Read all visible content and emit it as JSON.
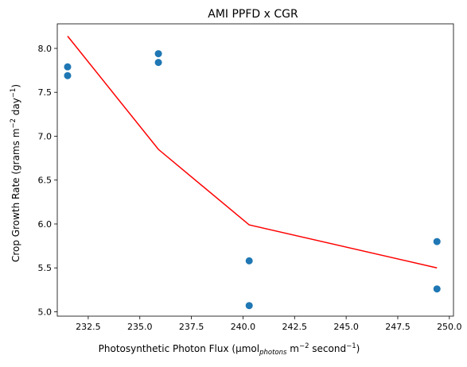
{
  "chart_data": {
    "type": "scatter",
    "title": "AMI PPFD x CGR",
    "xlabel": {
      "prefix": "Photosynthetic Photon Flux (μmol",
      "sub": "photons",
      "mid": " m",
      "sup1": "−2",
      "mid2": " second",
      "sup2": "−1",
      "suffix": ")"
    },
    "ylabel": {
      "prefix": "Crop Growth Rate (grams m",
      "sup1": "−2",
      "mid": " day",
      "sup2": "−1",
      "suffix": ")"
    },
    "xlim": [
      231.0,
      250.2
    ],
    "ylim": [
      4.95,
      8.28
    ],
    "xticks": [
      "232.5",
      "235.0",
      "237.5",
      "240.0",
      "242.5",
      "245.0",
      "247.5",
      "250.0"
    ],
    "yticks": [
      "5.0",
      "5.5",
      "6.0",
      "6.5",
      "7.0",
      "7.5",
      "8.0"
    ],
    "series": [
      {
        "kind": "scatter",
        "color": "#1f77b4",
        "points": [
          [
            231.5,
            7.79
          ],
          [
            231.5,
            7.69
          ],
          [
            235.9,
            7.94
          ],
          [
            235.9,
            7.84
          ],
          [
            240.3,
            5.58
          ],
          [
            240.3,
            5.07
          ],
          [
            249.4,
            5.8
          ],
          [
            249.4,
            5.26
          ]
        ]
      },
      {
        "kind": "line",
        "color": "#ff0000",
        "points": [
          [
            231.5,
            8.14
          ],
          [
            235.9,
            6.85
          ],
          [
            240.3,
            5.99
          ],
          [
            249.4,
            5.5
          ]
        ]
      }
    ]
  }
}
